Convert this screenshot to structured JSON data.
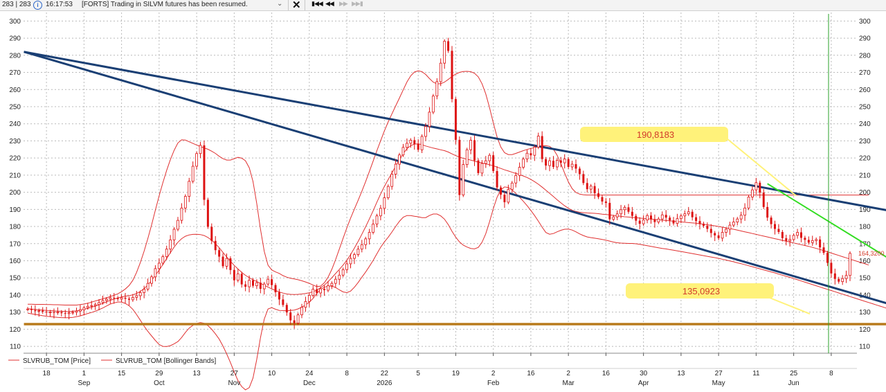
{
  "topbar": {
    "counter": "283 | 283",
    "time": "16:17:53",
    "message": "[FORTS] Trading in SILVM futures has been resumed."
  },
  "chart_data": {
    "type": "candlestick",
    "y_range": [
      106,
      305
    ],
    "y_ticks": [
      110,
      120,
      130,
      140,
      150,
      160,
      170,
      180,
      190,
      200,
      210,
      220,
      230,
      240,
      250,
      260,
      270,
      280,
      290,
      300
    ],
    "x_ticks": [
      {
        "day": "18",
        "month": "",
        "i": 5
      },
      {
        "day": "1",
        "month": "Sep",
        "i": 15
      },
      {
        "day": "15",
        "month": "",
        "i": 25
      },
      {
        "day": "29",
        "month": "Oct",
        "i": 35
      },
      {
        "day": "13",
        "month": "",
        "i": 45
      },
      {
        "day": "27",
        "month": "Nov",
        "i": 55
      },
      {
        "day": "10",
        "month": "",
        "i": 65
      },
      {
        "day": "24",
        "month": "Dec",
        "i": 75
      },
      {
        "day": "8",
        "month": "",
        "i": 85
      },
      {
        "day": "22",
        "month": "2026",
        "i": 95
      },
      {
        "day": "5",
        "month": "",
        "i": 104
      },
      {
        "day": "19",
        "month": "",
        "i": 114
      },
      {
        "day": "2",
        "month": "Feb",
        "i": 124
      },
      {
        "day": "16",
        "month": "",
        "i": 134
      },
      {
        "day": "2",
        "month": "Mar",
        "i": 144
      },
      {
        "day": "16",
        "month": "",
        "i": 154
      },
      {
        "day": "30",
        "month": "Apr",
        "i": 164
      },
      {
        "day": "13",
        "month": "",
        "i": 174
      },
      {
        "day": "27",
        "month": "May",
        "i": 184
      },
      {
        "day": "11",
        "month": "",
        "i": 194
      },
      {
        "day": "25",
        "month": "Jun",
        "i": 204
      },
      {
        "day": "8",
        "month": "",
        "i": 214
      }
    ],
    "close": [
      131.8,
      131.2,
      130.6,
      130.9,
      130.2,
      129.8,
      130.1,
      129.6,
      130.0,
      129.4,
      129.1,
      129.6,
      129.9,
      130.6,
      131.4,
      132.6,
      133.4,
      133.8,
      134.4,
      135.6,
      136.8,
      137.6,
      138.4,
      138.2,
      137.6,
      138.4,
      137.8,
      137.2,
      138.6,
      139.6,
      141.4,
      143.4,
      146.8,
      150.6,
      155.4,
      158.6,
      162.4,
      166.8,
      172.2,
      178.4,
      183.6,
      190.8,
      197.6,
      206.4,
      215.2,
      222.6,
      227.4,
      195.6,
      179.8,
      171.6,
      166.2,
      162.4,
      156.8,
      161.4,
      154.6,
      148.6,
      152.4,
      146.2,
      144.8,
      148.6,
      145.4,
      147.2,
      143.6,
      146.4,
      149.2,
      145.8,
      141.6,
      137.4,
      134.2,
      129.8,
      125.2,
      123.6,
      128.4,
      132.8,
      136.2,
      139.8,
      143.4,
      141.2,
      143.6,
      142.8,
      145.4,
      146.8,
      149.2,
      151.6,
      154.8,
      158.2,
      161.4,
      163.6,
      166.8,
      169.4,
      172.8,
      176.6,
      181.4,
      186.2,
      190.6,
      196.8,
      203.4,
      210.6,
      216.4,
      221.8,
      226.2,
      228.6,
      230.4,
      228.2,
      224.8,
      232.6,
      238.4,
      246.8,
      256.2,
      264.6,
      275.4,
      288.2,
      282.6,
      254.4,
      230.6,
      198.4,
      216.2,
      224.8,
      230.4,
      218.6,
      211.2,
      216.8,
      218.4,
      221.6,
      212.4,
      202.8,
      198.6,
      194.2,
      201.6,
      205.4,
      209.8,
      214.6,
      219.4,
      222.8,
      221.6,
      226.4,
      232.8,
      219.4,
      215.6,
      218.4,
      214.8,
      218.6,
      217.2,
      219.4,
      214.8,
      216.4,
      213.8,
      210.6,
      205.4,
      201.8,
      203.6,
      199.4,
      197.2,
      194.6,
      193.8,
      184.2,
      185.6,
      187.4,
      189.8,
      191.2,
      188.6,
      186.2,
      183.4,
      181.6,
      183.8,
      186.4,
      184.2,
      182.6,
      184.4,
      186.8,
      185.2,
      183.6,
      181.8,
      184.6,
      186.2,
      187.4,
      188.6,
      185.4,
      183.2,
      181.6,
      180.4,
      178.6,
      176.2,
      174.8,
      173.2,
      176.6,
      178.4,
      180.8,
      182.6,
      184.4,
      186.6,
      190.8,
      197.2,
      201.4,
      205.6,
      199.8,
      191.4,
      185.2,
      181.4,
      178.6,
      176.8,
      173.2,
      171.6,
      172.4,
      174.8,
      176.6,
      173.4,
      172.2,
      170.6,
      171.8,
      172.4,
      167.8,
      164.6,
      158.8,
      152.6,
      149.4,
      147.8,
      149.6,
      151.4,
      164.32
    ],
    "bollinger_middle": [
      132.0,
      131.8,
      131.6,
      131.4,
      131.2,
      131.0,
      130.9,
      130.7,
      130.6,
      130.5,
      130.4,
      130.4,
      130.5,
      130.7,
      131.1,
      131.6,
      132.2,
      132.8,
      133.5,
      134.3,
      135.1,
      136.0,
      136.9,
      137.6,
      138.3,
      138.9,
      139.3,
      139.6,
      140.1,
      140.9,
      142.1,
      143.7,
      145.9,
      148.5,
      151.5,
      154.5,
      157.8,
      161.3,
      164.7,
      168.0,
      170.8,
      172.9,
      174.3,
      175.1,
      175.4,
      175.5,
      175.3,
      174.7,
      173.6,
      172.0,
      170.0,
      167.6,
      164.9,
      162.2,
      159.7,
      157.3,
      155.2,
      153.2,
      151.5,
      150.1,
      148.9,
      147.9,
      146.8,
      145.7,
      144.6,
      143.6,
      142.6,
      141.8,
      141.1,
      140.6,
      140.4,
      140.3,
      140.4,
      140.6,
      140.9,
      141.3,
      141.9,
      142.9,
      144.2,
      145.8,
      147.8,
      150.1,
      152.5,
      154.9,
      157.5,
      160.3,
      163.6,
      167.3,
      171.3,
      175.5,
      179.8,
      184.4,
      189.2,
      194.2,
      199.0,
      203.4,
      207.4,
      211.3,
      215.2,
      219.0,
      222.6,
      225.4,
      227.2,
      228.1,
      228.3,
      227.8,
      227.0,
      226.4,
      225.8,
      225.3,
      224.8,
      224.3,
      223.5,
      222.4,
      221.4,
      220.5,
      219.8,
      219.3,
      218.8,
      218.2,
      217.6,
      217.1,
      216.6,
      216.1,
      215.5,
      214.7,
      213.9,
      213.1,
      212.4,
      211.7,
      211.0,
      210.3,
      209.5,
      208.6,
      207.5,
      206.2,
      204.7,
      203.0,
      201.2,
      199.4,
      197.5,
      195.6,
      193.8,
      192.1,
      190.6,
      189.5,
      188.8,
      188.3,
      188.1,
      187.9,
      187.8,
      187.7,
      187.5,
      187.2,
      187.0,
      186.8,
      186.5,
      186.2,
      186.0,
      185.7,
      185.5,
      185.3,
      185.1,
      184.9,
      184.7,
      184.5,
      184.3,
      184.1,
      183.9,
      183.7,
      183.5,
      183.3,
      183.1,
      182.9,
      182.7,
      182.5,
      182.3,
      182.1,
      181.9,
      181.6,
      181.3,
      181.0,
      180.7,
      180.4,
      180.0,
      179.6,
      179.2,
      178.8,
      178.4,
      177.9,
      177.4,
      176.9,
      176.4,
      175.9,
      175.4,
      174.9,
      174.4,
      173.9,
      173.4,
      172.9,
      172.4,
      171.9,
      171.4,
      170.9,
      170.4,
      169.9,
      169.4,
      168.9,
      168.4,
      167.8,
      167.2,
      166.6,
      165.9,
      165.2,
      164.5,
      163.8,
      163.1,
      162.4,
      161.7,
      161.0,
      160.3,
      159.6,
      158.9,
      158.2,
      157.5
    ],
    "bollinger_upper": [
      134.6,
      134.6,
      134.5,
      134.5,
      134.5,
      134.4,
      134.4,
      134.3,
      134.3,
      134.2,
      134.1,
      134.1,
      134.1,
      134.1,
      134.4,
      134.7,
      135.2,
      135.8,
      136.5,
      137.1,
      137.8,
      138.4,
      139.1,
      139.8,
      140.7,
      141.9,
      143.5,
      145.5,
      148.6,
      153.2,
      158.9,
      165.6,
      173.0,
      180.9,
      189.5,
      197.9,
      205.6,
      212.7,
      219.0,
      224.5,
      228.8,
      230.6,
      230.5,
      229.5,
      228.5,
      227.6,
      226.7,
      225.9,
      225.1,
      224.0,
      222.7,
      221.0,
      219.6,
      218.8,
      218.8,
      219.6,
      220.4,
      219.9,
      218.4,
      214.3,
      206.3,
      193.5,
      178.5,
      165.4,
      157.4,
      154.6,
      153.5,
      152.6,
      151.3,
      150.4,
      149.8,
      149.4,
      148.9,
      148.3,
      147.6,
      146.8,
      145.8,
      144.9,
      145.2,
      147.1,
      150.4,
      155.0,
      160.6,
      166.8,
      173.2,
      179.2,
      184.9,
      190.1,
      195.3,
      200.6,
      206.2,
      212.1,
      218.2,
      224.3,
      230.1,
      235.8,
      241.1,
      245.8,
      250.4,
      255.0,
      259.8,
      264.4,
      268.0,
      270.2,
      270.9,
      270.4,
      268.8,
      266.4,
      264.3,
      263.3,
      263.4,
      264.3,
      265.9,
      267.6,
      269.0,
      270.0,
      270.5,
      270.6,
      270.4,
      269.5,
      267.4,
      263.4,
      257.4,
      249.5,
      240.5,
      232.3,
      226.4,
      223.1,
      222.0,
      222.0,
      222.7,
      223.5,
      224.3,
      225.0,
      225.6,
      226.1,
      226.6,
      227.0,
      227.2,
      226.8,
      225.1,
      221.6,
      216.7,
      211.2,
      206.0,
      202.1,
      199.9,
      198.9,
      198.5,
      198.4,
      198.4,
      198.4,
      198.4,
      198.4,
      198.4,
      198.4,
      198.4,
      198.4,
      198.4,
      198.4,
      198.4,
      198.4,
      198.4,
      198.4,
      198.4,
      198.4,
      198.4,
      198.4,
      198.4,
      198.4,
      198.4,
      198.4,
      198.4,
      198.4,
      198.4,
      198.4,
      198.4,
      198.4,
      198.4,
      198.4,
      198.4,
      198.4,
      198.4,
      198.4,
      198.4,
      198.4,
      198.4,
      198.4,
      198.4,
      198.4,
      198.4,
      198.4,
      198.4,
      198.4,
      198.4,
      198.4,
      198.4,
      198.4,
      198.4,
      198.4,
      198.4,
      198.4,
      198.4,
      198.4,
      198.4,
      198.4,
      198.4,
      198.4,
      198.4,
      198.4,
      198.4,
      198.4,
      198.4,
      198.4,
      198.4,
      198.4,
      198.4,
      198.4,
      198.4,
      198.4,
      198.4,
      198.4,
      198.4,
      198.4,
      198.4
    ],
    "bollinger_lower": [
      129.4,
      129.0,
      128.7,
      128.3,
      127.9,
      127.6,
      127.4,
      127.1,
      126.9,
      126.8,
      126.7,
      126.7,
      126.9,
      127.3,
      127.8,
      128.5,
      129.2,
      129.8,
      130.5,
      131.5,
      132.4,
      133.6,
      134.7,
      135.4,
      135.9,
      135.9,
      135.1,
      133.7,
      131.6,
      128.6,
      125.3,
      121.8,
      118.8,
      116.1,
      113.5,
      111.1,
      110.0,
      109.9,
      110.4,
      111.5,
      112.8,
      115.2,
      118.1,
      120.7,
      122.3,
      123.4,
      123.9,
      123.5,
      122.1,
      120.0,
      117.3,
      114.2,
      110.2,
      105.6,
      100.6,
      95.0,
      90.0,
      86.5,
      84.6,
      85.9,
      91.5,
      102.3,
      115.1,
      126.0,
      131.8,
      132.6,
      131.7,
      131.0,
      130.9,
      130.8,
      131.0,
      131.2,
      131.9,
      132.9,
      134.2,
      135.8,
      138.0,
      140.9,
      143.2,
      144.5,
      145.2,
      145.2,
      144.4,
      143.0,
      141.8,
      141.4,
      142.3,
      144.5,
      147.3,
      150.4,
      153.4,
      156.7,
      160.2,
      164.1,
      167.9,
      171.0,
      173.7,
      176.8,
      180.0,
      183.0,
      185.4,
      186.4,
      186.4,
      186.0,
      185.7,
      185.2,
      185.2,
      186.4,
      187.3,
      187.3,
      186.2,
      184.3,
      181.1,
      177.2,
      173.8,
      171.0,
      169.1,
      168.0,
      167.2,
      166.9,
      167.8,
      170.8,
      175.8,
      182.7,
      190.5,
      197.1,
      201.4,
      203.1,
      202.8,
      201.4,
      199.3,
      197.1,
      194.7,
      192.2,
      189.4,
      186.4,
      183.1,
      179.6,
      176.5,
      175.5,
      175.9,
      176.9,
      177.8,
      178.4,
      178.5,
      177.9,
      176.9,
      175.7,
      174.7,
      173.9,
      173.5,
      173.2,
      172.8,
      172.4,
      172.0,
      171.5,
      170.9,
      170.5,
      170.3,
      170.2,
      170.1,
      170.1,
      169.9,
      169.6,
      169.2,
      168.8,
      168.4,
      168.0,
      167.6,
      167.2,
      166.9,
      166.5,
      166.2,
      165.8,
      165.4,
      165.0,
      164.6,
      164.2,
      163.8,
      163.4,
      163.0,
      162.6,
      162.2,
      161.8,
      161.4,
      160.9,
      160.4,
      159.9,
      159.4,
      158.8,
      158.3,
      157.7,
      157.1,
      156.5,
      155.9,
      155.3,
      154.7,
      154.1,
      153.5,
      152.9,
      152.2,
      151.6,
      150.9,
      150.3,
      149.6,
      148.9,
      148.2,
      147.5,
      146.8,
      146.1,
      145.4,
      144.7,
      144.0,
      143.3,
      142.6,
      141.9,
      141.2,
      140.5,
      139.8,
      139.1,
      138.4,
      137.7,
      137.0,
      136.3,
      135.6,
      134.9,
      134.2,
      133.5,
      132.8,
      132.1,
      131.4
    ],
    "trend_lines": [
      {
        "name": "channel-upper",
        "color": "#1a3f74",
        "p1": [
          -1,
          282
        ],
        "p2": [
          240,
          185
        ]
      },
      {
        "name": "channel-mid",
        "color": "#1a3f74",
        "p1": [
          -1,
          282
        ],
        "p2": [
          240,
          128
        ]
      },
      {
        "name": "green-trend",
        "color": "#33dd22",
        "p1": [
          197,
          205
        ],
        "p2": [
          234,
          155
        ]
      },
      {
        "name": "support",
        "color": "#b87a1c",
        "p1": [
          -1,
          123
        ],
        "p2": [
          240,
          123
        ]
      }
    ],
    "labels": {
      "upper": "190,8183",
      "lower": "135,0923",
      "last_price": "164,3200"
    },
    "legend": [
      "SLVRUB_TOM [Price]",
      "SLVRUB_TOM [Bollinger Bands]"
    ],
    "colors": {
      "candle": "#dd1111",
      "band": "#e03030",
      "channel": "#1a3f74",
      "trend": "#33dd22",
      "support": "#b87a1c",
      "bubble": "#fff27a",
      "vline": "#2aa02a"
    }
  }
}
